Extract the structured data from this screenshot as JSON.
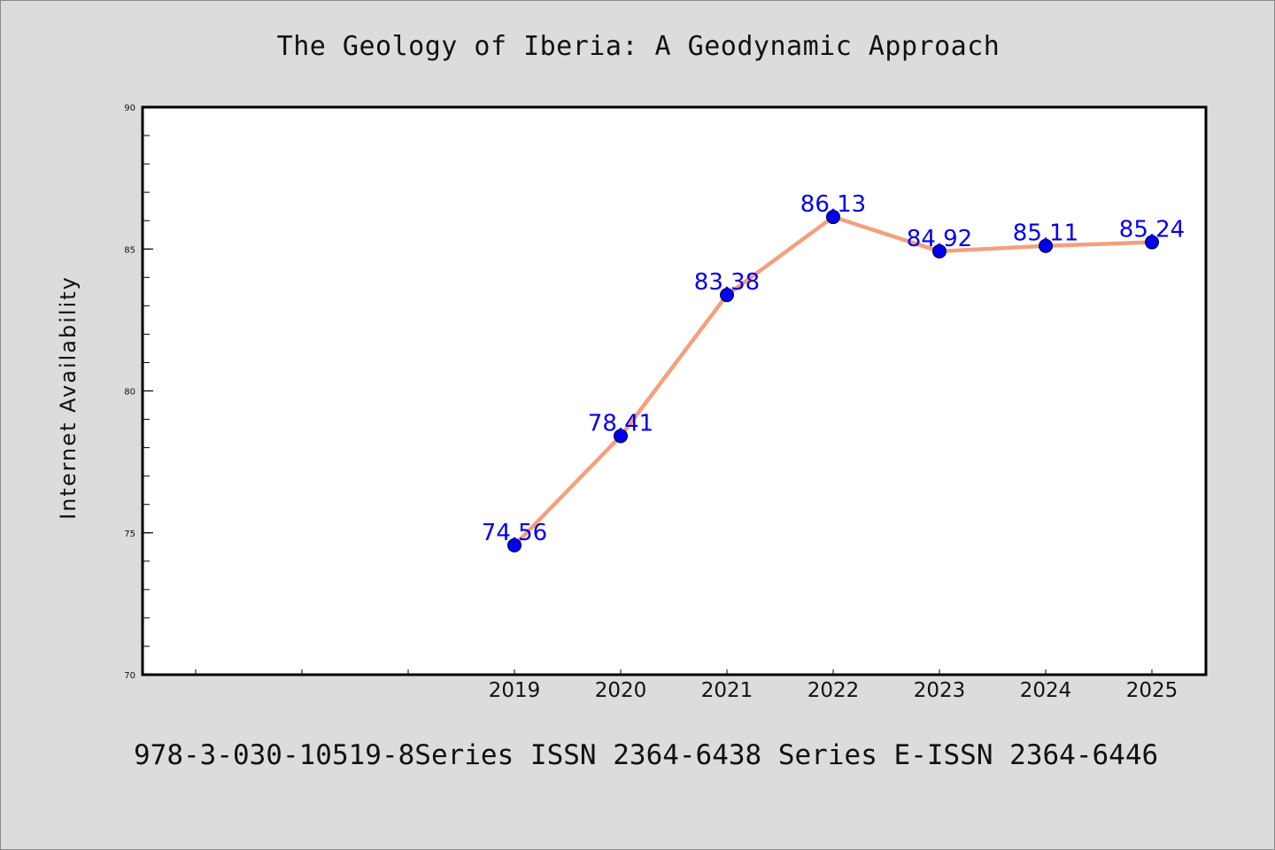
{
  "chart_data": {
    "type": "line",
    "title": "The Geology of Iberia: A Geodynamic Approach",
    "xlabel": "",
    "ylabel": "Internet Availability",
    "footer": "978-3-030-10519-8Series ISSN 2364-6438 Series E-ISSN 2364-6446",
    "x": [
      "2019",
      "2020",
      "2021",
      "2022",
      "2023",
      "2024",
      "2025"
    ],
    "series": [
      {
        "values": [
          74.56,
          78.41,
          83.38,
          86.13,
          84.92,
          85.11,
          85.24
        ]
      }
    ],
    "data_labels": [
      "74.56",
      "78.41",
      "83.38",
      "86.13",
      "84.92",
      "85.11",
      "85.24"
    ],
    "ylim": [
      70,
      90
    ],
    "yticks": [
      70,
      75,
      80,
      85,
      90
    ],
    "ytick_labels": [
      "70",
      "75",
      "80",
      "85",
      "90"
    ],
    "y_minor_step": 1,
    "x_slots_before_first_label": 3,
    "grid": false,
    "legend": "none",
    "colors": {
      "line": "#f4a07c",
      "marker": "#0000ee",
      "label": "#0000ee",
      "axes": "#000000",
      "background": "#dcdcdc",
      "plot_background": "#ffffff"
    }
  }
}
